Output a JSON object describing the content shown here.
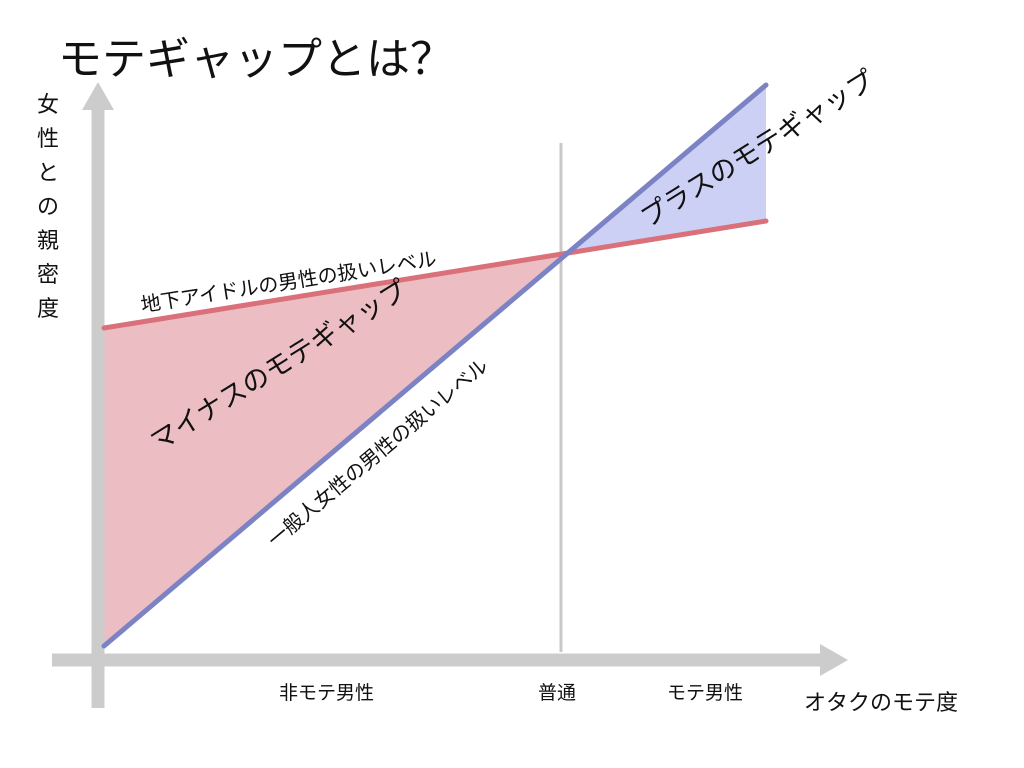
{
  "title": "モテギャップとは？",
  "axes": {
    "x_label": "オタクのモテ度",
    "y_label": "女性との親密度"
  },
  "x_categories": [
    "非モテ男性",
    "普通",
    "モテ男性"
  ],
  "lines": {
    "idol": {
      "label": "地下アイドルの男性の扱いレベル",
      "color": "#d9707a"
    },
    "general": {
      "label": "一般人女性の男性の扱いレベル",
      "color": "#7b83c4"
    }
  },
  "regions": {
    "minus": {
      "label": "マイナスのモテギャップ",
      "color": "#ecbec3"
    },
    "plus": {
      "label": "プラスのモテギャップ",
      "color": "#cdd0f5"
    }
  },
  "colors": {
    "axis": "#cccccc",
    "reference_line": "#c8c8c8",
    "text": "#111111"
  }
}
